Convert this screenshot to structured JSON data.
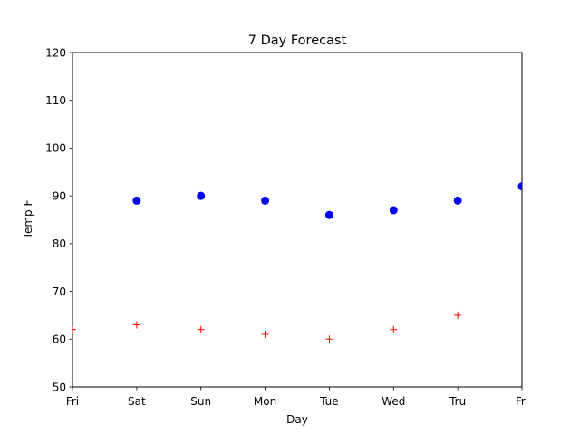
{
  "chart_data": {
    "type": "scatter",
    "title": "7 Day Forecast",
    "xlabel": "Day",
    "ylabel": "Temp F",
    "categories": [
      "Fri",
      "Sat",
      "Sun",
      "Mon",
      "Tue",
      "Wed",
      "Tru",
      "Fri"
    ],
    "ylim": [
      50,
      120
    ],
    "yticks": [
      50,
      60,
      70,
      80,
      90,
      100,
      110,
      120
    ],
    "grid": false,
    "legend": "none",
    "series": [
      {
        "marker": "circle",
        "color": "#0000ff",
        "values": [
          null,
          89,
          90,
          89,
          86,
          87,
          89,
          92
        ]
      },
      {
        "marker": "plus",
        "color": "#ff0000",
        "values": [
          62,
          63,
          62,
          61,
          60,
          62,
          65,
          null
        ]
      }
    ]
  }
}
